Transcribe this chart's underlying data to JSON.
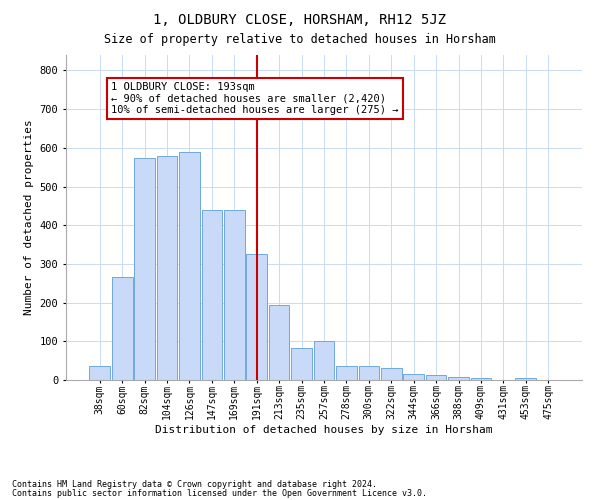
{
  "title": "1, OLDBURY CLOSE, HORSHAM, RH12 5JZ",
  "subtitle": "Size of property relative to detached houses in Horsham",
  "xlabel": "Distribution of detached houses by size in Horsham",
  "ylabel": "Number of detached properties",
  "footnote1": "Contains HM Land Registry data © Crown copyright and database right 2024.",
  "footnote2": "Contains public sector information licensed under the Open Government Licence v3.0.",
  "annotation_text": "1 OLDBURY CLOSE: 193sqm\n← 90% of detached houses are smaller (2,420)\n10% of semi-detached houses are larger (275) →",
  "bar_labels": [
    "38sqm",
    "60sqm",
    "82sqm",
    "104sqm",
    "126sqm",
    "147sqm",
    "169sqm",
    "191sqm",
    "213sqm",
    "235sqm",
    "257sqm",
    "278sqm",
    "300sqm",
    "322sqm",
    "344sqm",
    "366sqm",
    "388sqm",
    "409sqm",
    "431sqm",
    "453sqm",
    "475sqm"
  ],
  "bar_values": [
    37,
    265,
    575,
    580,
    590,
    440,
    440,
    325,
    195,
    83,
    100,
    37,
    37,
    30,
    15,
    13,
    8,
    5,
    0,
    5,
    0
  ],
  "bar_color": "#c9daf8",
  "bar_edge_color": "#6fa8dc",
  "grid_color": "#c9daf8",
  "vline_color": "#cc0000",
  "ylim": [
    0,
    840
  ],
  "yticks": [
    0,
    100,
    200,
    300,
    400,
    500,
    600,
    700,
    800
  ],
  "background_color": "#ffffff",
  "title_fontsize": 10,
  "subtitle_fontsize": 8.5,
  "axis_label_fontsize": 8,
  "tick_fontsize": 7,
  "annot_fontsize": 7.5
}
